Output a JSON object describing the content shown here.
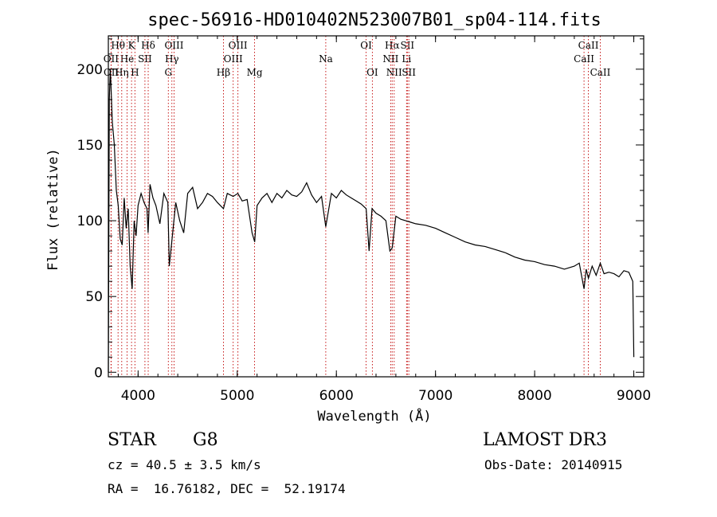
{
  "chart_data": {
    "type": "line",
    "title": "spec-56916-HD010402N523007B01_sp04-114.fits",
    "xlabel": "Wavelength (Å)",
    "ylabel": "Flux (relative)",
    "xlim": [
      3700,
      9100
    ],
    "ylim": [
      -3,
      222
    ],
    "x_ticks": [
      4000,
      5000,
      6000,
      7000,
      8000,
      9000
    ],
    "y_ticks": [
      0,
      50,
      100,
      150,
      200
    ],
    "grid": false,
    "series": [
      {
        "x": [
          3700,
          3710,
          3720,
          3740,
          3760,
          3780,
          3800,
          3820,
          3840,
          3860,
          3880,
          3900,
          3920,
          3940,
          3960,
          3980,
          4000,
          4030,
          4060,
          4090,
          4101,
          4120,
          4150,
          4180,
          4220,
          4260,
          4300,
          4315,
          4340,
          4380,
          4420,
          4460,
          4500,
          4550,
          4600,
          4650,
          4700,
          4750,
          4800,
          4861,
          4900,
          4959,
          5007,
          5050,
          5100,
          5150,
          5176,
          5200,
          5250,
          5300,
          5350,
          5400,
          5450,
          5500,
          5550,
          5600,
          5650,
          5700,
          5750,
          5800,
          5850,
          5893,
          5950,
          6000,
          6050,
          6100,
          6150,
          6200,
          6250,
          6300,
          6330,
          6360,
          6400,
          6450,
          6500,
          6540,
          6563,
          6600,
          6650,
          6700,
          6750,
          6800,
          6900,
          7000,
          7100,
          7200,
          7300,
          7400,
          7500,
          7600,
          7700,
          7800,
          7900,
          8000,
          8100,
          8200,
          8300,
          8400,
          8450,
          8498,
          8520,
          8542,
          8580,
          8620,
          8662,
          8700,
          8750,
          8800,
          8850,
          8900,
          8950,
          8990,
          9000
        ],
        "y": [
          0,
          180,
          200,
          165,
          150,
          120,
          110,
          88,
          84,
          115,
          95,
          108,
          70,
          55,
          100,
          90,
          110,
          118,
          112,
          108,
          92,
          124,
          115,
          110,
          98,
          118,
          112,
          70,
          86,
          112,
          100,
          92,
          118,
          122,
          108,
          112,
          118,
          116,
          112,
          108,
          118,
          116,
          118,
          113,
          114,
          92,
          86,
          110,
          115,
          118,
          112,
          118,
          115,
          120,
          117,
          116,
          119,
          125,
          117,
          112,
          116,
          96,
          118,
          115,
          120,
          117,
          115,
          113,
          111,
          108,
          80,
          108,
          105,
          103,
          100,
          80,
          82,
          103,
          101,
          100,
          99,
          98,
          97,
          95,
          92,
          89,
          86,
          84,
          83,
          81,
          79,
          76,
          74,
          73,
          71,
          70,
          68,
          70,
          72,
          55,
          68,
          62,
          70,
          64,
          72,
          65,
          66,
          65,
          63,
          67,
          66,
          60,
          10
        ]
      }
    ],
    "spectral_lines": [
      {
        "label": "Hθ",
        "x": 3798,
        "row": 0
      },
      {
        "label": "OII",
        "x": 3727,
        "row": 1
      },
      {
        "label": "OII",
        "x": 3729,
        "row": 2
      },
      {
        "label": "K",
        "x": 3934,
        "row": 0
      },
      {
        "label": "He",
        "x": 3889,
        "row": 1
      },
      {
        "label": "Hη",
        "x": 3835,
        "row": 2
      },
      {
        "label": "Hδ",
        "x": 4102,
        "row": 0
      },
      {
        "label": "SII",
        "x": 4069,
        "row": 1
      },
      {
        "label": "H",
        "x": 3968,
        "row": 2
      },
      {
        "label": "OIII",
        "x": 4363,
        "row": 0
      },
      {
        "label": "Hγ",
        "x": 4341,
        "row": 1
      },
      {
        "label": "G",
        "x": 4305,
        "row": 2
      },
      {
        "label": "OIII",
        "x": 5007,
        "row": 0
      },
      {
        "label": "OIII",
        "x": 4959,
        "row": 1
      },
      {
        "label": "Hβ",
        "x": 4861,
        "row": 2
      },
      {
        "label": "Mg",
        "x": 5175,
        "row": 2
      },
      {
        "label": "Na",
        "x": 5893,
        "row": 1
      },
      {
        "label": "OI",
        "x": 6300,
        "row": 0
      },
      {
        "label": "OI",
        "x": 6363,
        "row": 2
      },
      {
        "label": "Hα",
        "x": 6563,
        "row": 0
      },
      {
        "label": "SII",
        "x": 6716,
        "row": 0
      },
      {
        "label": "NII",
        "x": 6548,
        "row": 1
      },
      {
        "label": "Li",
        "x": 6708,
        "row": 1
      },
      {
        "label": "NII",
        "x": 6583,
        "row": 2
      },
      {
        "label": "SII",
        "x": 6731,
        "row": 2
      },
      {
        "label": "CaII",
        "x": 8542,
        "row": 0
      },
      {
        "label": "CaII",
        "x": 8498,
        "row": 1
      },
      {
        "label": "CaII",
        "x": 8662,
        "row": 2
      }
    ],
    "colors": {
      "spectrum": "#000000",
      "line_markers": "#c00000"
    }
  },
  "info": {
    "object_class": "STAR",
    "subclass": "G8",
    "survey": "LAMOST DR3",
    "cz": "cz = 40.5 ± 3.5 km/s",
    "obs_date": "Obs-Date: 20140915",
    "coords": "RA =  16.76182, DEC =  52.19174"
  }
}
